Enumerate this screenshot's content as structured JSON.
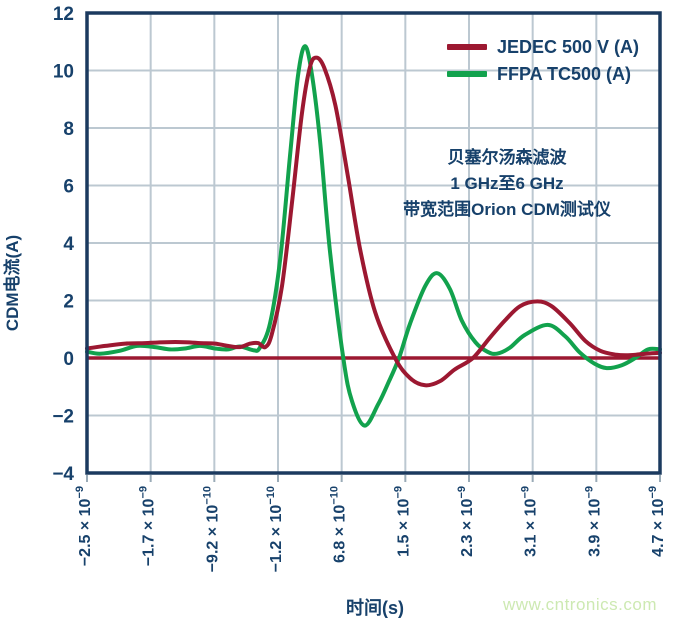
{
  "colors": {
    "text_navy": "#17416b",
    "plot_border": "#1b3a5f",
    "grid": "#bcc8d1",
    "tick_stub": "#9aabb7",
    "series_red": "#9c1831",
    "series_green": "#12a24d",
    "zero_line": "#9c1831",
    "watermark_green": "#cde9b2",
    "background": "#ffffff"
  },
  "legend": {
    "items": [
      {
        "label": "JEDEC 500 V (A)",
        "color": "#9c1831"
      },
      {
        "label": "FFPA TC500 (A)",
        "color": "#12a24d"
      }
    ]
  },
  "annotation": {
    "lines": [
      "贝塞尔汤森滤波",
      "1 GHz至6 GHz",
      "带宽范围Orion CDM测试仪"
    ]
  },
  "axes": {
    "y_title": "CDM电流(A)",
    "x_title": "时间(s)"
  },
  "watermark": "www.cntronics.com",
  "chart_data": {
    "type": "line",
    "title": "",
    "xlabel": "时间(s)",
    "ylabel": "CDM电流(A)",
    "x_unit": "seconds (values below are ×10⁻⁹ s)",
    "xlim_ns": [
      -2.5,
      4.7
    ],
    "ylim": [
      -4,
      12
    ],
    "grid": true,
    "legend_position": "top-right-inside",
    "zero_line": true,
    "y_ticks": [
      12,
      10,
      8,
      6,
      4,
      2,
      0,
      -2,
      -4
    ],
    "y_tick_labels": [
      "12",
      "10",
      "8",
      "6",
      "4",
      "2",
      "0",
      "−2",
      "−4"
    ],
    "x_ticks_ns": [
      -2.5,
      -1.7,
      -0.92,
      -0.12,
      0.68,
      1.5,
      2.3,
      3.1,
      3.9,
      4.7
    ],
    "x_tick_labels": [
      {
        "base": "−2.5 × 10",
        "exp": "−9"
      },
      {
        "base": "−1.7 × 10",
        "exp": "−9"
      },
      {
        "base": "−9.2 × 10",
        "exp": "−10"
      },
      {
        "base": "−1.2 × 10",
        "exp": "−10"
      },
      {
        "base": "6.8 × 10",
        "exp": "−10"
      },
      {
        "base": "1.5 × 10",
        "exp": "−9"
      },
      {
        "base": "2.3 × 10",
        "exp": "−9"
      },
      {
        "base": "3.1 × 10",
        "exp": "−9"
      },
      {
        "base": "3.9 × 10",
        "exp": "−9"
      },
      {
        "base": "4.7 × 10",
        "exp": "−9"
      }
    ],
    "series": [
      {
        "name": "FFPA TC500 (A)",
        "color": "#12a24d",
        "x_ns": [
          -2.5,
          -2.34,
          -2.09,
          -1.87,
          -1.65,
          -1.46,
          -1.27,
          -1.08,
          -0.89,
          -0.73,
          -0.58,
          -0.41,
          -0.33,
          -0.2,
          -0.07,
          0.05,
          0.15,
          0.24,
          0.33,
          0.43,
          0.55,
          0.72,
          0.83,
          0.99,
          1.16,
          1.28,
          1.42,
          1.56,
          1.75,
          1.9,
          2.06,
          2.21,
          2.38,
          2.53,
          2.65,
          2.81,
          3.0,
          3.29,
          3.51,
          3.69,
          3.88,
          4.03,
          4.22,
          4.39,
          4.55,
          4.7
        ],
        "y": [
          0.22,
          0.15,
          0.25,
          0.42,
          0.38,
          0.3,
          0.33,
          0.42,
          0.33,
          0.3,
          0.4,
          0.27,
          0.35,
          1.2,
          3.5,
          7.0,
          9.8,
          10.85,
          9.8,
          7.5,
          3.8,
          0.0,
          -1.5,
          -2.35,
          -1.6,
          -0.9,
          0.0,
          1.2,
          2.5,
          2.95,
          2.4,
          1.3,
          0.55,
          0.22,
          0.15,
          0.35,
          0.8,
          1.15,
          0.75,
          0.2,
          -0.2,
          -0.35,
          -0.25,
          0.0,
          0.3,
          0.3
        ]
      },
      {
        "name": "JEDEC 500 V (A)",
        "color": "#9c1831",
        "x_ns": [
          -2.5,
          -2.27,
          -2.02,
          -1.77,
          -1.52,
          -1.27,
          -1.08,
          -0.89,
          -0.73,
          -0.58,
          -0.45,
          -0.35,
          -0.26,
          -0.18,
          -0.05,
          0.08,
          0.2,
          0.3,
          0.38,
          0.48,
          0.62,
          0.78,
          0.93,
          1.12,
          1.37,
          1.56,
          1.75,
          1.94,
          2.12,
          2.35,
          2.56,
          2.75,
          2.94,
          3.16,
          3.34,
          3.57,
          3.76,
          3.95,
          4.14,
          4.33,
          4.52,
          4.7
        ],
        "y": [
          0.33,
          0.42,
          0.5,
          0.52,
          0.55,
          0.55,
          0.52,
          0.5,
          0.42,
          0.38,
          0.5,
          0.52,
          0.38,
          0.8,
          2.5,
          5.5,
          8.5,
          10.1,
          10.45,
          10.1,
          8.8,
          6.3,
          3.8,
          1.6,
          0.0,
          -0.7,
          -0.95,
          -0.8,
          -0.4,
          0.0,
          0.7,
          1.3,
          1.8,
          1.97,
          1.8,
          1.2,
          0.6,
          0.25,
          0.12,
          0.1,
          0.15,
          0.18
        ]
      }
    ]
  }
}
